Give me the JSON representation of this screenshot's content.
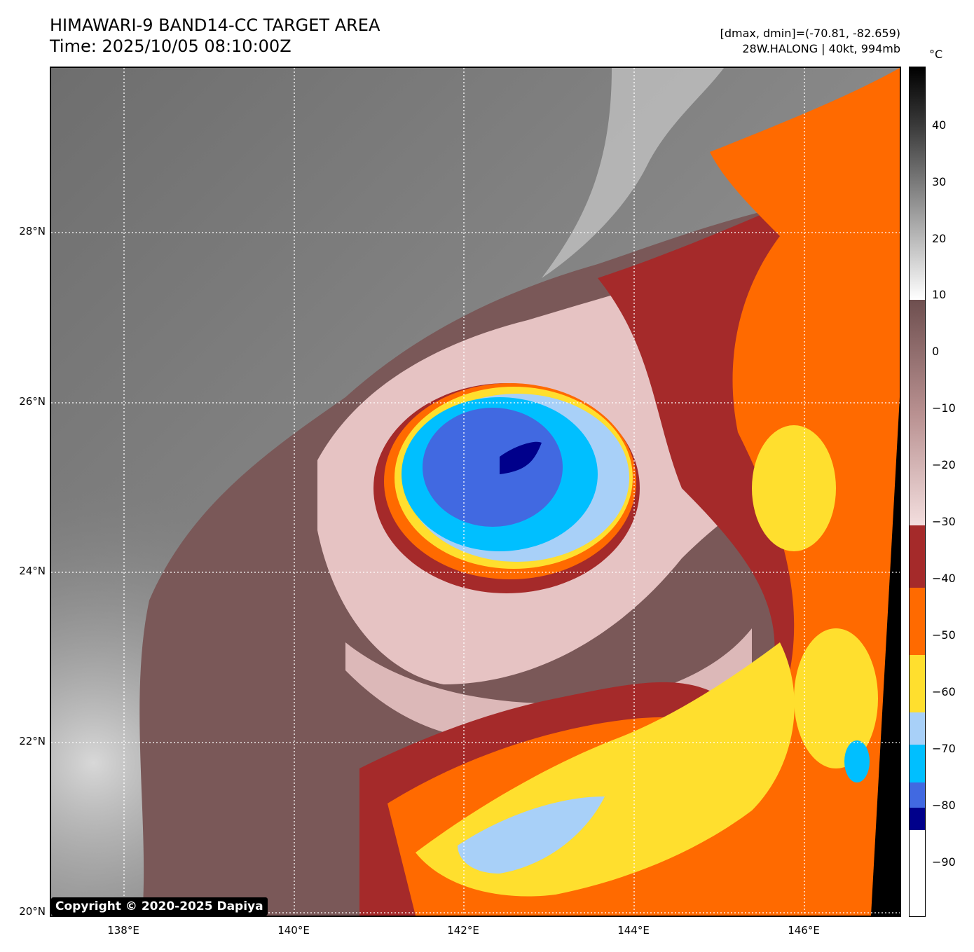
{
  "header": {
    "title": "HIMAWARI-9 BAND14-CC TARGET AREA",
    "time": "Time: 2025/10/05 08:10:00Z",
    "dmax_dmin": "[dmax, dmin]=(-70.81, -82.659)",
    "storm_info": "28W.HALONG | 40kt, 994mb"
  },
  "map": {
    "lat_labels": [
      "28°N",
      "26°N",
      "24°N",
      "22°N",
      "20°N"
    ],
    "lon_labels": [
      "138°E",
      "140°E",
      "142°E",
      "144°E",
      "146°E"
    ],
    "gridlines": "dotted-white",
    "copyright": "Copyright © 2020-2025 Dapiya",
    "colors": {
      "gray_background": "#6a6a6a",
      "warm_brown": "#7a5656",
      "pink": "#e8c4c4",
      "dark_red": "#a52a2a",
      "orange": "#ff6a00",
      "yellow": "#ffdf2e",
      "light_blue": "#a8d0f8",
      "deep_sky_blue": "#00bfff",
      "royal_blue": "#4169e1",
      "navy": "#00008b",
      "no_data": "#000000"
    }
  },
  "colorbar": {
    "unit": "°C",
    "ticks": [
      "40",
      "30",
      "20",
      "10",
      "0",
      "−10",
      "−20",
      "−30",
      "−40",
      "−50",
      "−60",
      "−70",
      "−80",
      "−90"
    ]
  }
}
